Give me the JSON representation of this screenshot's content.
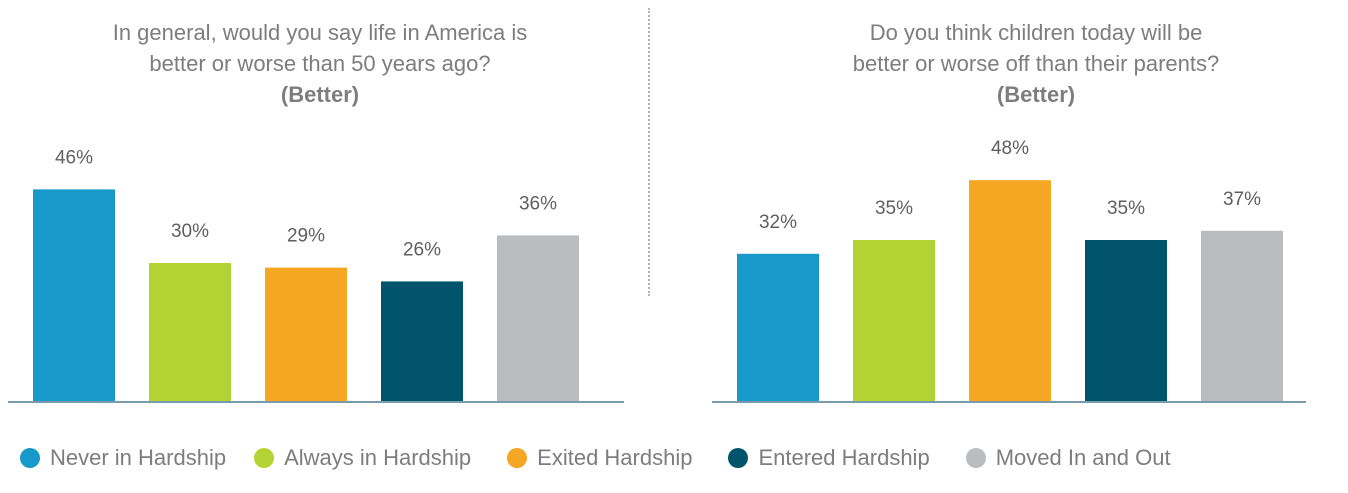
{
  "colors": {
    "never": "#1799c9",
    "always": "#b3d334",
    "exited": "#f5a622",
    "entered": "#01546b",
    "moved": "#bbbcbf",
    "axis": "#4b7a93",
    "text": "#7d7d7d"
  },
  "legend": [
    {
      "label": "Never in Hardship",
      "color": "#1799c9"
    },
    {
      "label": "Always in Hardship",
      "color": "#b3d334"
    },
    {
      "label": "Exited Hardship",
      "color": "#f5a622"
    },
    {
      "label": "Entered Hardship",
      "color": "#01546b"
    },
    {
      "label": "Moved In and Out",
      "color": "#bbbcbf"
    }
  ],
  "chart_data": [
    {
      "type": "bar",
      "title_line1": "In general, would you say life in America is",
      "title_line2": "better or worse than 50 years ago?",
      "subtitle": "(Better)",
      "categories": [
        "Never in Hardship",
        "Always in Hardship",
        "Exited Hardship",
        "Entered Hardship",
        "Moved In and Out"
      ],
      "values": [
        46,
        30,
        29,
        26,
        36
      ],
      "labels": [
        "46%",
        "30%",
        "29%",
        "26%",
        "36%"
      ],
      "ylim": [
        0,
        50
      ]
    },
    {
      "type": "bar",
      "title_line1": "Do you think children today will be",
      "title_line2": "better or worse off than their parents?",
      "subtitle": "(Better)",
      "categories": [
        "Never in Hardship",
        "Always in Hardship",
        "Exited Hardship",
        "Entered Hardship",
        "Moved In and Out"
      ],
      "values": [
        32,
        35,
        48,
        35,
        37
      ],
      "labels": [
        "32%",
        "35%",
        "48%",
        "35%",
        "37%"
      ],
      "ylim": [
        0,
        50
      ]
    }
  ]
}
